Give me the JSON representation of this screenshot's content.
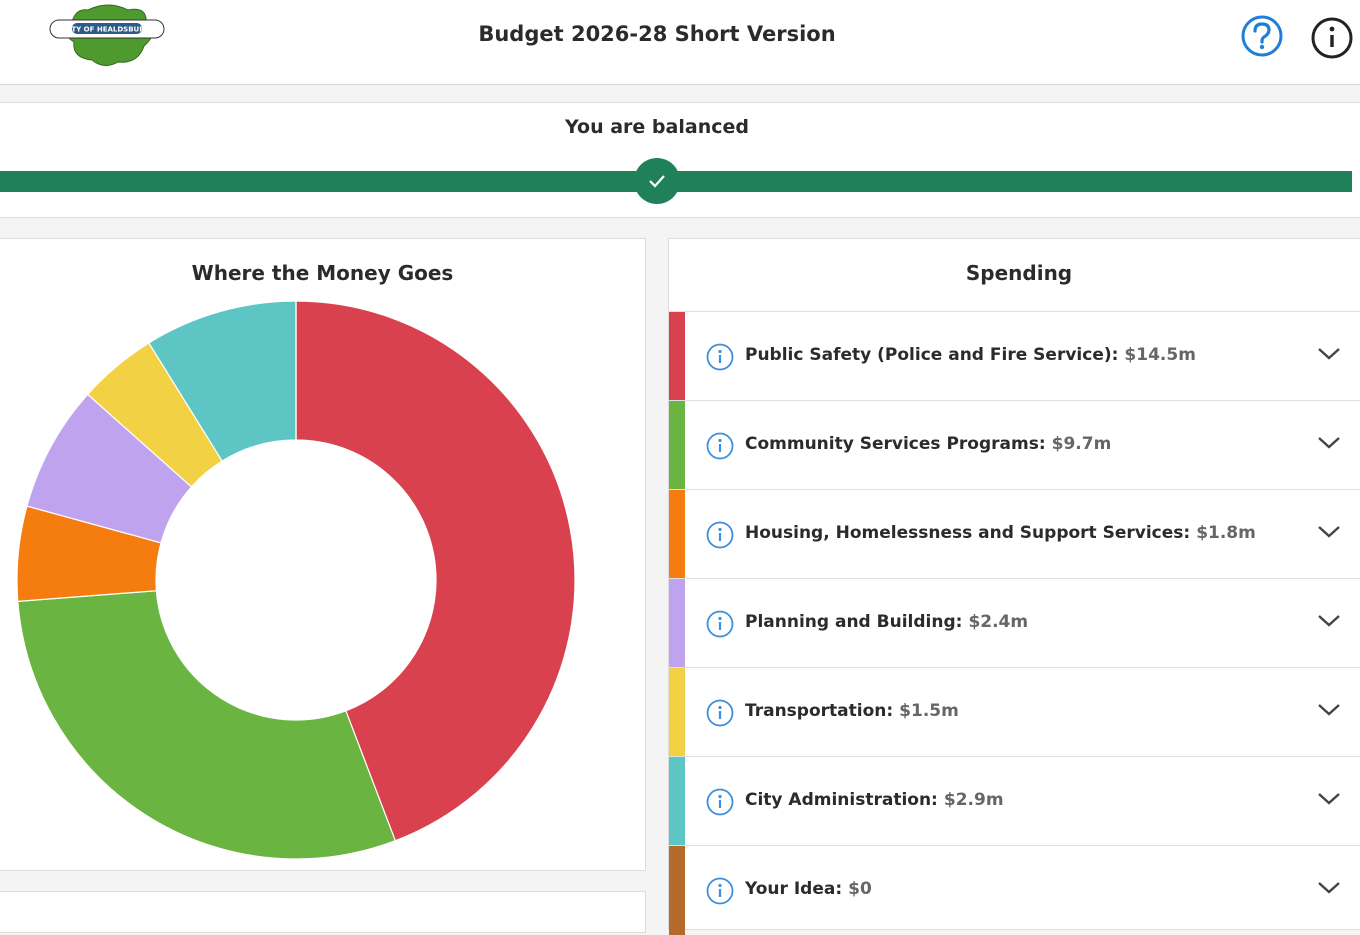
{
  "header": {
    "title": "Budget 2026-28 Short Version",
    "logo": "CITY OF HEALDSBURG"
  },
  "balance": {
    "status": "You are balanced"
  },
  "chart_data": {
    "type": "donut",
    "title": "Where the Money Goes",
    "categories": [
      "Public Safety (Police and Fire Service):",
      "Community Services Programs:",
      "Housing, Homelessness and Support Services:",
      "Planning and Building:",
      "Transportation:",
      "City Administration:",
      "Your Idea:"
    ],
    "values": [
      14.5,
      9.7,
      1.8,
      2.4,
      1.5,
      2.9,
      0
    ],
    "value_labels": [
      "$14.5m",
      "$9.7m",
      "$1.8m",
      "$2.4m",
      "$1.5m",
      "$2.9m",
      "$0"
    ],
    "colors": [
      "#d9414e",
      "#6ab441",
      "#f57c0f",
      "#c0a3ee",
      "#f2d244",
      "#5dc5c4",
      "#b5692b"
    ]
  },
  "spending": {
    "title": "Spending"
  }
}
